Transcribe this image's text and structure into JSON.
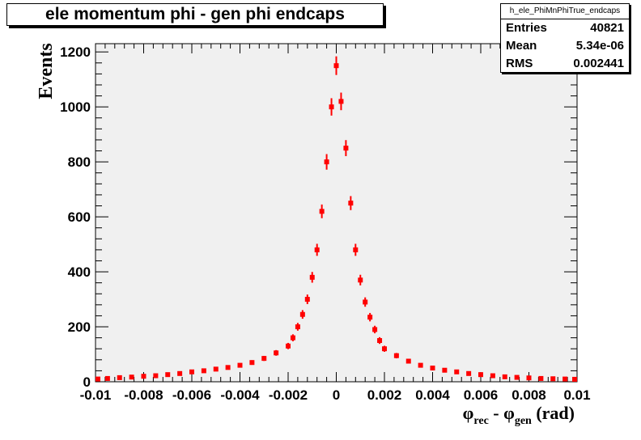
{
  "chart_data": {
    "type": "histogram",
    "title": "ele momentum  phi - gen  phi endcaps",
    "xlabel": {
      "main": "φ",
      "sub1": "rec",
      "minus": " - ",
      "main2": "φ",
      "sub2": "gen",
      "unit": " (rad)"
    },
    "ylabel": "Events",
    "xlim": [
      -0.01,
      0.01
    ],
    "ylim": [
      0,
      1230
    ],
    "x_ticks": [
      -0.01,
      -0.008,
      -0.006,
      -0.004,
      -0.002,
      0,
      0.002,
      0.004,
      0.006,
      0.008,
      0.01
    ],
    "x_tick_labels": [
      "-0.01",
      "-0.008",
      "-0.006",
      "-0.004",
      "-0.002",
      "0",
      "0.002",
      "0.004",
      "0.006",
      "0.008",
      "0.01"
    ],
    "y_ticks": [
      0,
      200,
      400,
      600,
      800,
      1000,
      1200
    ],
    "y_tick_labels": [
      "0",
      "200",
      "400",
      "600",
      "800",
      "1000",
      "1200"
    ],
    "series": [
      {
        "color": "#ff0000",
        "points": [
          [
            -0.0099,
            10
          ],
          [
            -0.0095,
            12
          ],
          [
            -0.009,
            15
          ],
          [
            -0.0085,
            17
          ],
          [
            -0.008,
            20
          ],
          [
            -0.0075,
            22
          ],
          [
            -0.007,
            26
          ],
          [
            -0.0065,
            30
          ],
          [
            -0.006,
            36
          ],
          [
            -0.0055,
            40
          ],
          [
            -0.005,
            46
          ],
          [
            -0.0045,
            52
          ],
          [
            -0.004,
            60
          ],
          [
            -0.0035,
            70
          ],
          [
            -0.003,
            85
          ],
          [
            -0.0025,
            105
          ],
          [
            -0.002,
            130
          ],
          [
            -0.0018,
            160
          ],
          [
            -0.0016,
            200
          ],
          [
            -0.0014,
            245
          ],
          [
            -0.0012,
            300
          ],
          [
            -0.001,
            380
          ],
          [
            -0.0008,
            480
          ],
          [
            -0.0006,
            620
          ],
          [
            -0.0004,
            800
          ],
          [
            -0.0002,
            1000
          ],
          [
            0,
            1150
          ],
          [
            0.0002,
            1020
          ],
          [
            0.0004,
            850
          ],
          [
            0.0006,
            650
          ],
          [
            0.0008,
            480
          ],
          [
            0.001,
            370
          ],
          [
            0.0012,
            290
          ],
          [
            0.0014,
            235
          ],
          [
            0.0016,
            190
          ],
          [
            0.0018,
            150
          ],
          [
            0.002,
            120
          ],
          [
            0.0025,
            95
          ],
          [
            0.003,
            75
          ],
          [
            0.0035,
            60
          ],
          [
            0.004,
            50
          ],
          [
            0.0045,
            42
          ],
          [
            0.005,
            36
          ],
          [
            0.0055,
            30
          ],
          [
            0.006,
            26
          ],
          [
            0.0065,
            22
          ],
          [
            0.007,
            18
          ],
          [
            0.0075,
            16
          ],
          [
            0.008,
            14
          ],
          [
            0.0085,
            12
          ],
          [
            0.009,
            11
          ],
          [
            0.0095,
            10
          ],
          [
            0.0099,
            9
          ]
        ]
      }
    ],
    "stats": {
      "name": "h_ele_PhiMnPhiTrue_endcaps",
      "rows": [
        {
          "label": "Entries",
          "value": "40821"
        },
        {
          "label": "Mean",
          "value": "5.34e-06"
        },
        {
          "label": "RMS",
          "value": "0.002441"
        }
      ]
    }
  }
}
